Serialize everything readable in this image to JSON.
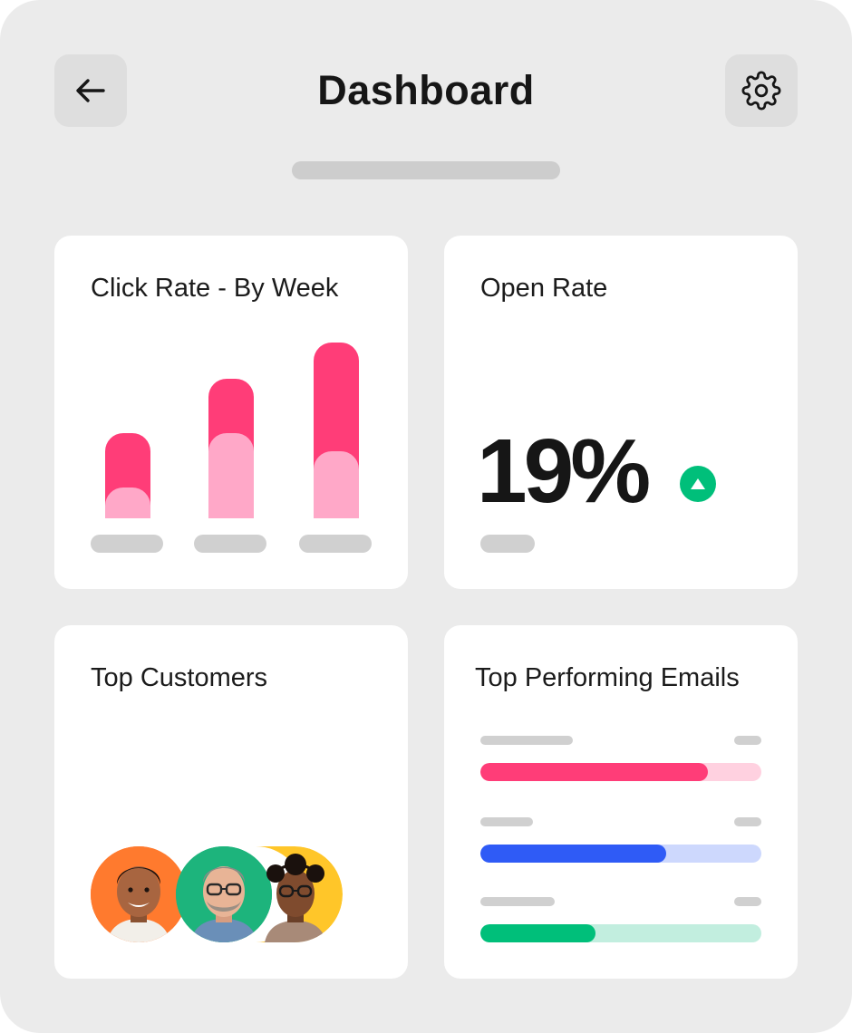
{
  "header": {
    "title": "Dashboard",
    "back_icon": "arrow-left-icon",
    "settings_icon": "gear-icon"
  },
  "click_rate_card": {
    "title": "Click Rate - By Week",
    "colors": {
      "primary": "#ff3d78",
      "secondary": "#ffa8c8"
    },
    "weeks": [
      {
        "total": 94,
        "secondary": 34
      },
      {
        "total": 154,
        "secondary": 94
      },
      {
        "total": 194,
        "secondary": 74
      }
    ]
  },
  "open_rate_card": {
    "title": "Open Rate",
    "value": "19%",
    "trend_icon": "triangle-up-icon",
    "trend_color": "#00bf7a"
  },
  "top_customers_card": {
    "title": "Top Customers",
    "avatars": [
      {
        "icon": "avatar-man-smiling",
        "bg": "#ff7a2e"
      },
      {
        "icon": "avatar-man-glasses",
        "bg": "#1db47c"
      },
      {
        "icon": "avatar-woman-glasses",
        "bg": "#ffc629"
      }
    ]
  },
  "top_emails_card": {
    "title": "Top Performing Emails",
    "emails": [
      {
        "fill": 0.81,
        "color": "#ff3d78",
        "track_color": "#ffd1e0"
      },
      {
        "fill": 0.66,
        "color": "#2f5bf6",
        "track_color": "#cdd8fd"
      },
      {
        "fill": 0.41,
        "color": "#00bf7a",
        "track_color": "#c2eedf"
      }
    ]
  }
}
